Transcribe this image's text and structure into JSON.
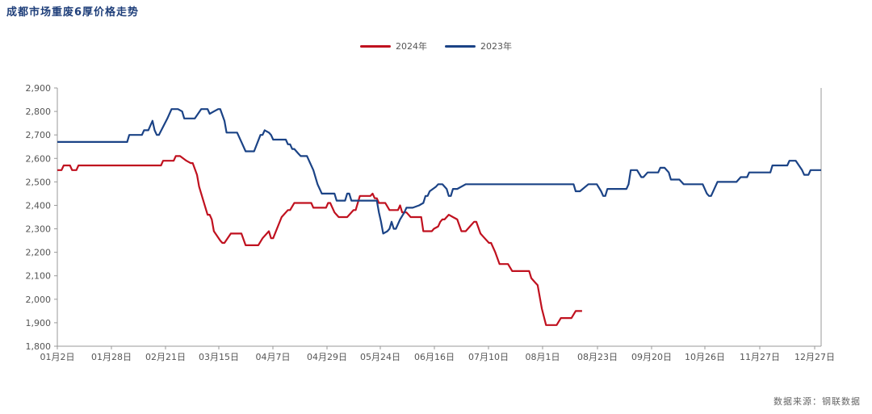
{
  "title": "成都市场重废6厚价格走势",
  "source": "数据来源：钢联数据",
  "chart_data": {
    "type": "line",
    "title": "成都市场重废6厚价格走势",
    "xlabel": "",
    "ylabel": "",
    "ylim": [
      1800,
      2900
    ],
    "yticks": [
      1800,
      1900,
      2000,
      2100,
      2200,
      2300,
      2400,
      2500,
      2600,
      2700,
      2800,
      2900
    ],
    "ytick_labels": [
      "1,800",
      "1,900",
      "2,000",
      "2,100",
      "2,200",
      "2,300",
      "2,400",
      "2,500",
      "2,600",
      "2,700",
      "2,800",
      "2,900"
    ],
    "xticks": [
      "01月2日",
      "01月28日",
      "02月21日",
      "03月15日",
      "04月7日",
      "04月29日",
      "05月24日",
      "06月16日",
      "07月10日",
      "08月1日",
      "08月23日",
      "09月20日",
      "10月26日",
      "11月27日",
      "12月27日"
    ],
    "legend_position": "top-center",
    "grid": false,
    "series": [
      {
        "name": "2024年",
        "color": "#c0111f",
        "points": [
          [
            "01-02",
            2550
          ],
          [
            "01-04",
            2550
          ],
          [
            "01-05",
            2570
          ],
          [
            "01-08",
            2570
          ],
          [
            "01-09",
            2550
          ],
          [
            "01-11",
            2550
          ],
          [
            "01-12",
            2570
          ],
          [
            "02-20",
            2570
          ],
          [
            "02-21",
            2590
          ],
          [
            "02-26",
            2590
          ],
          [
            "02-27",
            2610
          ],
          [
            "03-01",
            2610
          ],
          [
            "03-04",
            2590
          ],
          [
            "03-06",
            2580
          ],
          [
            "03-07",
            2580
          ],
          [
            "03-09",
            2530
          ],
          [
            "03-10",
            2480
          ],
          [
            "03-12",
            2420
          ],
          [
            "03-14",
            2360
          ],
          [
            "03-15",
            2360
          ],
          [
            "03-16",
            2340
          ],
          [
            "03-17",
            2290
          ],
          [
            "03-20",
            2250
          ],
          [
            "03-21",
            2240
          ],
          [
            "03-22",
            2240
          ],
          [
            "03-25",
            2280
          ],
          [
            "03-30",
            2280
          ],
          [
            "04-01",
            2230
          ],
          [
            "04-05",
            2230
          ],
          [
            "04-07",
            2230
          ],
          [
            "04-09",
            2260
          ],
          [
            "04-12",
            2290
          ],
          [
            "04-13",
            2260
          ],
          [
            "04-14",
            2260
          ],
          [
            "04-18",
            2350
          ],
          [
            "04-21",
            2380
          ],
          [
            "04-22",
            2380
          ],
          [
            "04-24",
            2410
          ],
          [
            "05-02",
            2410
          ],
          [
            "05-03",
            2390
          ],
          [
            "05-09",
            2390
          ],
          [
            "05-10",
            2410
          ],
          [
            "05-11",
            2410
          ],
          [
            "05-13",
            2370
          ],
          [
            "05-14",
            2360
          ],
          [
            "05-15",
            2350
          ],
          [
            "05-19",
            2350
          ],
          [
            "05-22",
            2380
          ],
          [
            "05-23",
            2380
          ],
          [
            "05-25",
            2440
          ],
          [
            "05-30",
            2440
          ],
          [
            "05-31",
            2450
          ],
          [
            "06-01",
            2430
          ],
          [
            "06-02",
            2430
          ],
          [
            "06-03",
            2410
          ],
          [
            "06-06",
            2410
          ],
          [
            "06-08",
            2380
          ],
          [
            "06-12",
            2380
          ],
          [
            "06-13",
            2400
          ],
          [
            "06-14",
            2370
          ],
          [
            "06-16",
            2370
          ],
          [
            "06-18",
            2350
          ],
          [
            "06-23",
            2350
          ],
          [
            "06-24",
            2290
          ],
          [
            "06-28",
            2290
          ],
          [
            "06-29",
            2300
          ],
          [
            "07-01",
            2310
          ],
          [
            "07-02",
            2330
          ],
          [
            "07-03",
            2340
          ],
          [
            "07-04",
            2340
          ],
          [
            "07-06",
            2360
          ],
          [
            "07-08",
            2350
          ],
          [
            "07-10",
            2340
          ],
          [
            "07-12",
            2290
          ],
          [
            "07-14",
            2290
          ],
          [
            "07-16",
            2310
          ],
          [
            "07-18",
            2330
          ],
          [
            "07-19",
            2330
          ],
          [
            "07-21",
            2280
          ],
          [
            "07-22",
            2270
          ],
          [
            "07-23",
            2260
          ],
          [
            "07-25",
            2240
          ],
          [
            "07-26",
            2240
          ],
          [
            "07-28",
            2200
          ],
          [
            "07-30",
            2150
          ],
          [
            "08-03",
            2150
          ],
          [
            "08-05",
            2120
          ],
          [
            "08-13",
            2120
          ],
          [
            "08-14",
            2090
          ],
          [
            "08-16",
            2070
          ],
          [
            "08-17",
            2060
          ],
          [
            "08-19",
            1960
          ],
          [
            "08-21",
            1890
          ],
          [
            "08-26",
            1890
          ],
          [
            "08-28",
            1920
          ],
          [
            "09-02",
            1920
          ],
          [
            "09-04",
            1950
          ],
          [
            "09-07",
            1950
          ]
        ]
      },
      {
        "name": "2023年",
        "color": "#1b4386",
        "points": [
          [
            "01-02",
            2670
          ],
          [
            "02-04",
            2670
          ],
          [
            "02-05",
            2700
          ],
          [
            "02-11",
            2700
          ],
          [
            "02-12",
            2720
          ],
          [
            "02-14",
            2720
          ],
          [
            "02-16",
            2760
          ],
          [
            "02-17",
            2720
          ],
          [
            "02-18",
            2700
          ],
          [
            "02-19",
            2700
          ],
          [
            "02-23",
            2770
          ],
          [
            "02-25",
            2810
          ],
          [
            "02-28",
            2810
          ],
          [
            "03-02",
            2800
          ],
          [
            "03-03",
            2770
          ],
          [
            "03-08",
            2770
          ],
          [
            "03-11",
            2810
          ],
          [
            "03-14",
            2810
          ],
          [
            "03-15",
            2790
          ],
          [
            "03-17",
            2800
          ],
          [
            "03-19",
            2810
          ],
          [
            "03-20",
            2810
          ],
          [
            "03-22",
            2760
          ],
          [
            "03-23",
            2710
          ],
          [
            "03-28",
            2710
          ],
          [
            "03-30",
            2670
          ],
          [
            "04-01",
            2630
          ],
          [
            "04-05",
            2630
          ],
          [
            "04-08",
            2700
          ],
          [
            "04-09",
            2700
          ],
          [
            "04-10",
            2720
          ],
          [
            "04-12",
            2710
          ],
          [
            "04-13",
            2700
          ],
          [
            "04-14",
            2680
          ],
          [
            "04-20",
            2680
          ],
          [
            "04-21",
            2660
          ],
          [
            "04-22",
            2660
          ],
          [
            "04-23",
            2640
          ],
          [
            "04-24",
            2640
          ],
          [
            "04-26",
            2620
          ],
          [
            "04-27",
            2610
          ],
          [
            "04-30",
            2610
          ],
          [
            "05-03",
            2550
          ],
          [
            "05-05",
            2490
          ],
          [
            "05-07",
            2450
          ],
          [
            "05-13",
            2450
          ],
          [
            "05-14",
            2420
          ],
          [
            "05-18",
            2420
          ],
          [
            "05-19",
            2450
          ],
          [
            "05-20",
            2450
          ],
          [
            "05-21",
            2420
          ],
          [
            "06-02",
            2420
          ],
          [
            "06-03",
            2370
          ],
          [
            "06-04",
            2330
          ],
          [
            "06-05",
            2280
          ],
          [
            "06-07",
            2290
          ],
          [
            "06-08",
            2300
          ],
          [
            "06-09",
            2330
          ],
          [
            "06-10",
            2300
          ],
          [
            "06-11",
            2300
          ],
          [
            "06-13",
            2340
          ],
          [
            "06-15",
            2370
          ],
          [
            "06-16",
            2390
          ],
          [
            "06-18",
            2390
          ],
          [
            "06-19",
            2390
          ],
          [
            "06-22",
            2400
          ],
          [
            "06-24",
            2410
          ],
          [
            "06-25",
            2440
          ],
          [
            "06-26",
            2440
          ],
          [
            "06-27",
            2460
          ],
          [
            "06-30",
            2480
          ],
          [
            "07-01",
            2490
          ],
          [
            "07-03",
            2490
          ],
          [
            "07-05",
            2470
          ],
          [
            "07-06",
            2440
          ],
          [
            "07-07",
            2440
          ],
          [
            "07-08",
            2470
          ],
          [
            "07-10",
            2470
          ],
          [
            "07-14",
            2490
          ],
          [
            "09-03",
            2490
          ],
          [
            "09-04",
            2460
          ],
          [
            "09-06",
            2460
          ],
          [
            "09-10",
            2490
          ],
          [
            "09-14",
            2490
          ],
          [
            "09-16",
            2460
          ],
          [
            "09-17",
            2440
          ],
          [
            "09-18",
            2440
          ],
          [
            "09-19",
            2470
          ],
          [
            "09-28",
            2470
          ],
          [
            "09-29",
            2490
          ],
          [
            "09-30",
            2550
          ],
          [
            "10-03",
            2550
          ],
          [
            "10-05",
            2520
          ],
          [
            "10-06",
            2520
          ],
          [
            "10-08",
            2540
          ],
          [
            "10-13",
            2540
          ],
          [
            "10-14",
            2560
          ],
          [
            "10-16",
            2560
          ],
          [
            "10-18",
            2540
          ],
          [
            "10-19",
            2510
          ],
          [
            "10-23",
            2510
          ],
          [
            "10-25",
            2490
          ],
          [
            "11-03",
            2490
          ],
          [
            "11-05",
            2450
          ],
          [
            "11-06",
            2440
          ],
          [
            "11-07",
            2440
          ],
          [
            "11-10",
            2500
          ],
          [
            "11-19",
            2500
          ],
          [
            "11-21",
            2520
          ],
          [
            "11-24",
            2520
          ],
          [
            "11-25",
            2540
          ],
          [
            "12-05",
            2540
          ],
          [
            "12-06",
            2570
          ],
          [
            "12-13",
            2570
          ],
          [
            "12-14",
            2590
          ],
          [
            "12-17",
            2590
          ],
          [
            "12-20",
            2550
          ],
          [
            "12-21",
            2530
          ],
          [
            "12-23",
            2530
          ],
          [
            "12-24",
            2550
          ],
          [
            "12-29",
            2550
          ]
        ]
      }
    ]
  }
}
